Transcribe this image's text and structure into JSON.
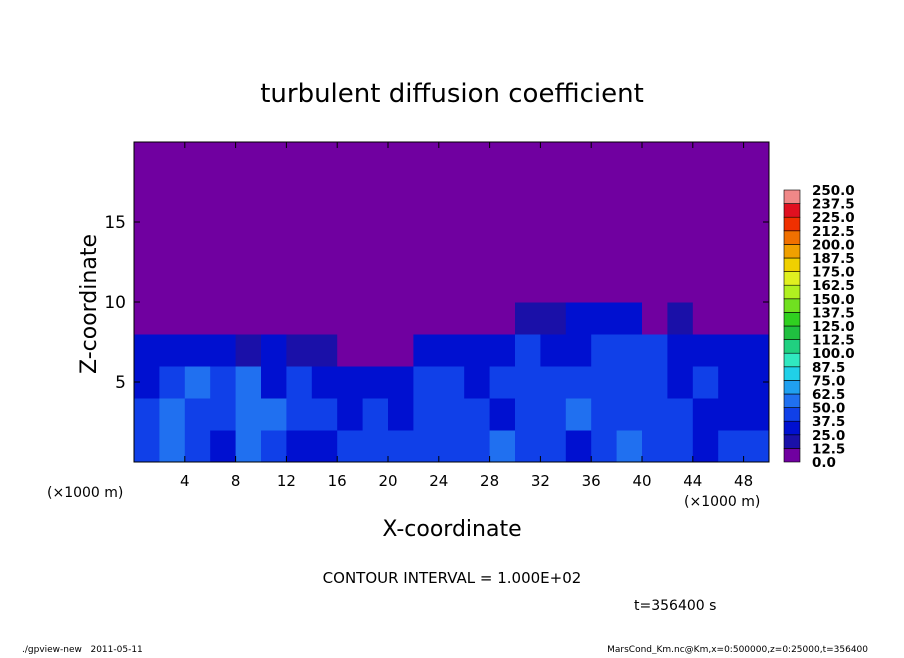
{
  "chart_data": {
    "type": "heatmap",
    "title": "turbulent diffusion coefficient",
    "x_label": "X-coordinate",
    "y_label": "Z-coordinate",
    "x_unit": "(×1000 m)",
    "y_unit": "(×1000 m)",
    "annotation": "CONTOUR INTERVAL = 1.000E+02",
    "time_label": "t=356400 s",
    "footer_left": "./gpview-new   2011-05-11",
    "footer_right": "MarsCond_Km.nc@Km,x=0:500000,z=0:25000,t=356400",
    "xlim": [
      0,
      50
    ],
    "ylim": [
      0,
      20
    ],
    "xticks": [
      4,
      8,
      12,
      16,
      20,
      24,
      28,
      32,
      36,
      40,
      44,
      48
    ],
    "yticks": [
      5,
      10,
      15
    ],
    "x": [
      1,
      3,
      5,
      7,
      9,
      11,
      13,
      15,
      17,
      19,
      21,
      23,
      25,
      27,
      29,
      31,
      33,
      35,
      37,
      39,
      41,
      43,
      45,
      47,
      49
    ],
    "y": [
      1,
      3,
      5,
      7,
      9,
      11,
      13,
      15,
      17,
      19
    ],
    "z": [
      [
        45,
        55,
        40,
        35,
        50,
        45,
        30,
        35,
        40,
        45,
        40,
        45,
        40,
        45,
        50,
        45,
        40,
        35,
        45,
        50,
        40,
        45,
        35,
        40,
        45
      ],
      [
        40,
        50,
        45,
        40,
        50,
        60,
        40,
        45,
        35,
        40,
        35,
        40,
        45,
        40,
        35,
        40,
        45,
        50,
        45,
        40,
        45,
        40,
        35,
        30,
        35
      ],
      [
        35,
        45,
        50,
        45,
        55,
        35,
        40,
        30,
        35,
        30,
        35,
        40,
        45,
        35,
        40,
        45,
        40,
        45,
        40,
        45,
        40,
        35,
        40,
        35,
        30
      ],
      [
        30,
        25,
        30,
        25,
        20,
        25,
        20,
        15,
        10,
        5,
        12,
        30,
        35,
        30,
        35,
        40,
        35,
        35,
        40,
        45,
        40,
        35,
        30,
        35,
        30
      ],
      [
        0,
        0,
        0,
        0,
        0,
        0,
        0,
        0,
        0,
        0,
        0,
        0,
        0,
        5,
        10,
        20,
        20,
        25,
        30,
        30,
        10,
        15,
        5,
        0,
        0
      ],
      [
        0,
        0,
        0,
        0,
        0,
        0,
        0,
        0,
        0,
        0,
        0,
        0,
        0,
        0,
        0,
        0,
        0,
        0,
        0,
        0,
        0,
        0,
        0,
        0,
        0
      ],
      [
        0,
        0,
        0,
        0,
        0,
        0,
        0,
        0,
        0,
        0,
        0,
        0,
        0,
        0,
        0,
        0,
        0,
        0,
        0,
        0,
        0,
        0,
        0,
        0,
        0
      ],
      [
        0,
        0,
        0,
        0,
        0,
        0,
        0,
        0,
        0,
        0,
        0,
        0,
        0,
        0,
        0,
        0,
        0,
        0,
        0,
        0,
        0,
        0,
        0,
        0,
        0
      ],
      [
        0,
        0,
        0,
        0,
        0,
        0,
        0,
        0,
        0,
        0,
        0,
        0,
        0,
        0,
        0,
        0,
        0,
        0,
        0,
        0,
        0,
        0,
        0,
        0,
        0
      ],
      [
        0,
        0,
        0,
        0,
        0,
        0,
        0,
        0,
        0,
        0,
        0,
        0,
        0,
        0,
        0,
        0,
        0,
        0,
        0,
        0,
        0,
        0,
        0,
        0,
        0
      ]
    ],
    "colorbar": {
      "levels": [
        {
          "value": 0,
          "label": "0.0"
        },
        12.5,
        {
          "value": 25,
          "label": "25.0"
        },
        37.5,
        {
          "value": 50,
          "label": "50.0"
        },
        62.5,
        {
          "value": 75,
          "label": "75.0"
        },
        87.5,
        {
          "value": 100,
          "label": "100.0"
        },
        112.5,
        {
          "value": 125,
          "label": "125.0"
        },
        137.5,
        {
          "value": 150,
          "label": "150.0"
        },
        162.5,
        {
          "value": 175,
          "label": "175.0"
        },
        187.5,
        {
          "value": 200,
          "label": "200.0"
        },
        212.5,
        {
          "value": 225,
          "label": "225.0"
        },
        237.5,
        {
          "value": 250,
          "label": "250.0"
        }
      ],
      "colors": [
        "#7000a0",
        "#1a10a8",
        "#0010d0",
        "#1040e8",
        "#2070f0",
        "#20a0f0",
        "#20d0e8",
        "#30e8c0",
        "#20d080",
        "#20c040",
        "#30d020",
        "#70e020",
        "#b0f020",
        "#e0f020",
        "#f0d000",
        "#f0a000",
        "#f07000",
        "#f03000",
        "#e01020",
        "#f08888"
      ]
    }
  }
}
